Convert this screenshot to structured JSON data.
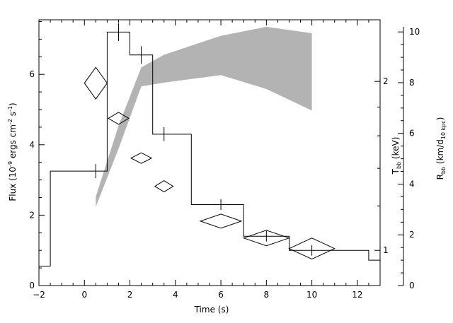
{
  "chart_data": {
    "type": "line",
    "x_axis": {
      "title_main": "Time (s)",
      "range": [
        -2,
        13
      ],
      "ticks": [
        -2,
        0,
        2,
        4,
        6,
        8,
        10,
        12
      ]
    },
    "y_axis_left": {
      "title_main": "Flux (10",
      "title_sup1": "-9",
      "title_mid": " ergs cm",
      "title_sup2": "-2",
      "title_mid2": " s",
      "title_sup3": "-1",
      "title_end": ")",
      "range": [
        0,
        7.55
      ],
      "ticks": [
        0,
        2,
        4,
        6
      ]
    },
    "y_axis_temp": {
      "title_main": "T",
      "title_sub": "bb",
      "title_end": " (keV)",
      "ticks": [
        1,
        2
      ]
    },
    "y_axis_radius": {
      "title_main": "R",
      "title_sub": "bb",
      "title_mid": " (km/d",
      "title_sub2": "10 kpc",
      "title_end": ")",
      "range": [
        0,
        10.2
      ],
      "ticks": [
        0,
        2,
        4,
        6,
        8,
        10
      ]
    },
    "series": [
      {
        "kind": "flux_histogram",
        "bins": [
          {
            "x0": -2.0,
            "x1": -1.5,
            "y": 0.55
          },
          {
            "x0": -1.5,
            "x1": 1.0,
            "y": 3.25
          },
          {
            "x0": 1.0,
            "x1": 2.0,
            "y": 7.2
          },
          {
            "x0": 2.0,
            "x1": 3.0,
            "y": 6.55
          },
          {
            "x0": 3.0,
            "x1": 4.7,
            "y": 4.3
          },
          {
            "x0": 4.7,
            "x1": 7.0,
            "y": 2.3
          },
          {
            "x0": 7.0,
            "x1": 9.0,
            "y": 1.4
          },
          {
            "x0": 9.0,
            "x1": 12.5,
            "y": 1.0
          },
          {
            "x0": 12.5,
            "x1": 13.0,
            "y": 0.72
          }
        ],
        "error_points": [
          {
            "x": 0.5,
            "y": 3.25,
            "err": 0.2
          },
          {
            "x": 1.5,
            "y": 7.2,
            "err": 0.25
          },
          {
            "x": 2.5,
            "y": 6.55,
            "err": 0.25
          },
          {
            "x": 3.5,
            "y": 4.3,
            "err": 0.2
          },
          {
            "x": 6.0,
            "y": 2.3,
            "err": 0.15
          },
          {
            "x": 8.0,
            "y": 1.4,
            "err": 0.15
          },
          {
            "x": 10.0,
            "y": 1.0,
            "err": 0.15
          }
        ]
      },
      {
        "kind": "temperature_diamonds",
        "points": [
          {
            "x": 0.5,
            "y": 5.75,
            "dx": 0.5,
            "dy": 0.45
          },
          {
            "x": 1.5,
            "y": 4.75,
            "dx": 0.45,
            "dy": 0.17
          },
          {
            "x": 2.5,
            "y": 3.62,
            "dx": 0.45,
            "dy": 0.15
          },
          {
            "x": 3.5,
            "y": 2.82,
            "dx": 0.4,
            "dy": 0.16
          },
          {
            "x": 6.0,
            "y": 1.83,
            "dx": 0.9,
            "dy": 0.2
          },
          {
            "x": 8.0,
            "y": 1.35,
            "dx": 1.0,
            "dy": 0.22
          },
          {
            "x": 10.0,
            "y": 1.05,
            "dx": 1.0,
            "dy": 0.3
          }
        ]
      },
      {
        "kind": "radius_band",
        "upper": [
          {
            "x": 0.5,
            "r": 3.5
          },
          {
            "x": 1.5,
            "r": 6.3
          },
          {
            "x": 2.5,
            "r": 8.6
          },
          {
            "x": 3.5,
            "r": 9.1
          },
          {
            "x": 6.0,
            "r": 9.85
          },
          {
            "x": 8.0,
            "r": 10.2
          },
          {
            "x": 10.0,
            "r": 9.95
          }
        ],
        "lower": [
          {
            "x": 0.5,
            "r": 3.1
          },
          {
            "x": 1.5,
            "r": 5.4
          },
          {
            "x": 2.5,
            "r": 7.85
          },
          {
            "x": 3.5,
            "r": 8.0
          },
          {
            "x": 6.0,
            "r": 8.3
          },
          {
            "x": 8.0,
            "r": 7.75
          },
          {
            "x": 10.0,
            "r": 6.9
          }
        ]
      }
    ]
  }
}
